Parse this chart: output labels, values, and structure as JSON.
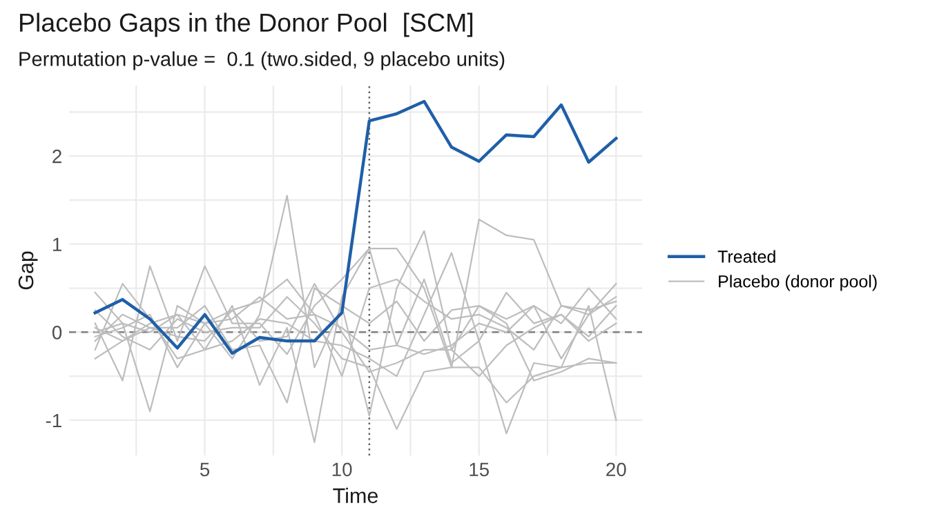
{
  "chart_data": {
    "type": "line",
    "title": "Placebo Gaps in the Donor Pool  [SCM]",
    "subtitle": "Permutation p-value =  0.1 (two.sided, 9 placebo units)",
    "xlabel": "Time",
    "ylabel": "Gap",
    "x": [
      1,
      2,
      3,
      4,
      5,
      6,
      7,
      8,
      9,
      10,
      11,
      12,
      13,
      14,
      15,
      16,
      17,
      18,
      19,
      20
    ],
    "series": [
      {
        "color": "#bdbdbd",
        "values": [
          0.45,
          0.1,
          -0.9,
          0.3,
          0.1,
          -0.3,
          0.2,
          1.55,
          -0.4,
          0.3,
          -0.95,
          0.5,
          1.15,
          -0.2,
          0.3,
          0.15,
          0.3,
          -0.3,
          0.2,
          0.55
        ]
      },
      {
        "color": "#bdbdbd",
        "values": [
          -0.2,
          0.55,
          0.15,
          -0.3,
          -0.2,
          0.3,
          -0.6,
          0.05,
          -1.25,
          0.4,
          0.95,
          -0.15,
          0.6,
          -0.35,
          -0.1,
          -1.15,
          -0.35,
          -0.4,
          0.3,
          -1.0
        ]
      },
      {
        "color": "#bdbdbd",
        "values": [
          0.1,
          -0.55,
          0.75,
          -0.1,
          0.75,
          0.1,
          0.1,
          -0.25,
          0.3,
          0.6,
          0.95,
          0.95,
          0.5,
          -0.4,
          1.28,
          1.1,
          1.05,
          0.3,
          0.25,
          0.35
        ]
      },
      {
        "color": "#bdbdbd",
        "values": [
          -0.05,
          0.05,
          0.2,
          -0.4,
          0.1,
          0.15,
          0.4,
          0.15,
          0.2,
          -0.5,
          0.5,
          0.6,
          0.35,
          0.15,
          0.2,
          0.05,
          -0.2,
          0.3,
          0.2,
          0.4
        ]
      },
      {
        "color": "#bdbdbd",
        "values": [
          0.0,
          0.1,
          0.0,
          0.2,
          -0.2,
          -0.1,
          0.15,
          0.1,
          -0.1,
          -0.15,
          -0.3,
          -0.5,
          0.2,
          0.9,
          -0.1,
          0.45,
          0.1,
          0.2,
          -0.05,
          0.3
        ]
      },
      {
        "color": "#bdbdbd",
        "values": [
          -0.3,
          -0.1,
          0.05,
          0.05,
          0.3,
          -0.2,
          -0.15,
          -0.8,
          0.5,
          0.3,
          0.1,
          0.35,
          -0.1,
          0.25,
          0.3,
          0.1,
          -0.55,
          -0.45,
          -0.3,
          -0.35
        ]
      },
      {
        "color": "#bdbdbd",
        "values": [
          0.25,
          -0.05,
          -0.2,
          0.15,
          0.0,
          0.05,
          0.05,
          0.4,
          0.1,
          -0.3,
          -0.4,
          -1.1,
          -0.45,
          -0.4,
          -0.4,
          -0.8,
          -0.5,
          -0.4,
          -0.35,
          -0.35
        ]
      },
      {
        "color": "#bdbdbd",
        "values": [
          -0.1,
          0.2,
          0.05,
          -0.05,
          -0.1,
          0.25,
          -0.1,
          -0.05,
          0.55,
          0.0,
          -0.45,
          -0.35,
          -0.2,
          -0.2,
          -0.5,
          -0.15,
          0.05,
          0.2,
          -0.1,
          0.1
        ]
      },
      {
        "name": "Placebo (donor pool)",
        "color": "#bdbdbd",
        "values": [
          0.05,
          -0.1,
          0.1,
          0.2,
          0.1,
          0.25,
          0.35,
          0.6,
          0.2,
          0.05,
          -0.2,
          -0.15,
          -0.25,
          -0.15,
          0.1,
          0.0,
          0.3,
          0.1,
          0.5,
          0.15
        ]
      },
      {
        "name": "Treated",
        "color": "#1f5fa8",
        "values": [
          0.22,
          0.37,
          0.15,
          -0.18,
          0.2,
          -0.24,
          -0.06,
          -0.1,
          -0.1,
          0.22,
          2.4,
          2.48,
          2.62,
          2.1,
          1.94,
          2.24,
          2.22,
          2.58,
          1.93,
          2.2
        ]
      }
    ],
    "ref_lines": [
      {
        "axis": "y",
        "value": 0,
        "line_style": "dashed",
        "color": "#808080"
      },
      {
        "axis": "x",
        "value": 11,
        "line_style": "dotted",
        "color": "#606060"
      }
    ],
    "xlim": [
      0.05,
      20.95
    ],
    "ylim": [
      -1.4,
      2.8
    ],
    "xticks": [
      {
        "value": 2.5,
        "label": null
      },
      5,
      {
        "value": 7.5,
        "label": null
      },
      10,
      {
        "value": 12.5,
        "label": null
      },
      15,
      {
        "value": 17.5,
        "label": null
      },
      20
    ],
    "yticks": [
      {
        "value": -0.5,
        "label": null
      },
      -1,
      0,
      {
        "value": 0.5,
        "label": null
      },
      1,
      {
        "value": 1.5,
        "label": null
      },
      2,
      {
        "value": 2.5,
        "label": null
      }
    ],
    "grid": true,
    "legend": "right",
    "marker": "none",
    "line_style": "solid"
  }
}
